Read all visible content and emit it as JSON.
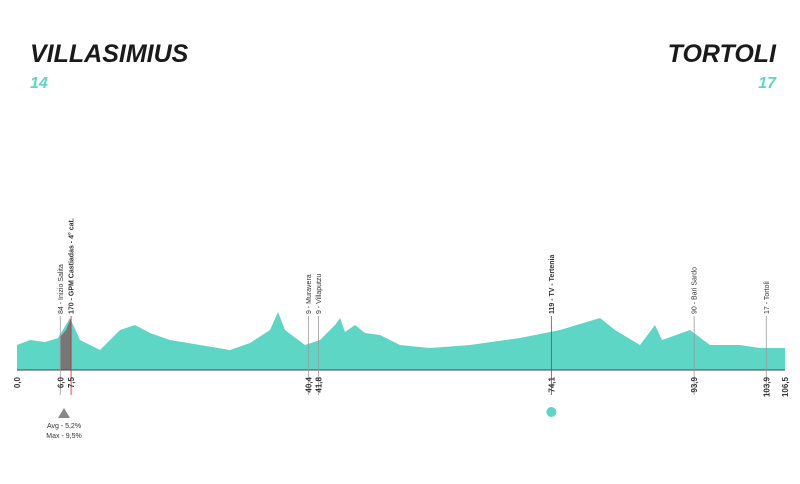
{
  "header": {
    "start": "VILLASIMIUS",
    "start_number": "14",
    "finish": "TORTOLI",
    "finish_number": "17"
  },
  "markers": [
    {
      "km": {
        "value": 0.0,
        "label": "0,0"
      }
    },
    {
      "km": {
        "value": 6.0,
        "label": "6,0"
      },
      "label": "84 - Inizio Salita"
    },
    {
      "km": {
        "value": 7.5,
        "label": "7,5"
      },
      "label": "170 - GPM Castiadas - 4° cat.",
      "color": "#e0202a"
    },
    {
      "km": {
        "value": 40.4,
        "label": "40,4"
      },
      "label": "9 - Muravera"
    },
    {
      "km": {
        "value": 41.8,
        "label": "41,8"
      },
      "label": "9 - Villaputzu"
    },
    {
      "km": {
        "value": 74.1,
        "label": "74,1"
      },
      "label": "119 - TV - Tertenia",
      "color": "#e0202a"
    },
    {
      "km": {
        "value": 93.9,
        "label": "93,9"
      },
      "label": "90 - Bari Sardo"
    },
    {
      "km": {
        "value": 103.9,
        "label": "103,9"
      },
      "label": "17 - Tortolì"
    },
    {
      "km": {
        "value": 106.5,
        "label": "106,5"
      }
    }
  ],
  "climb": {
    "avg": "Avg - 5,2%",
    "max": "Max - 9,5%"
  }
}
